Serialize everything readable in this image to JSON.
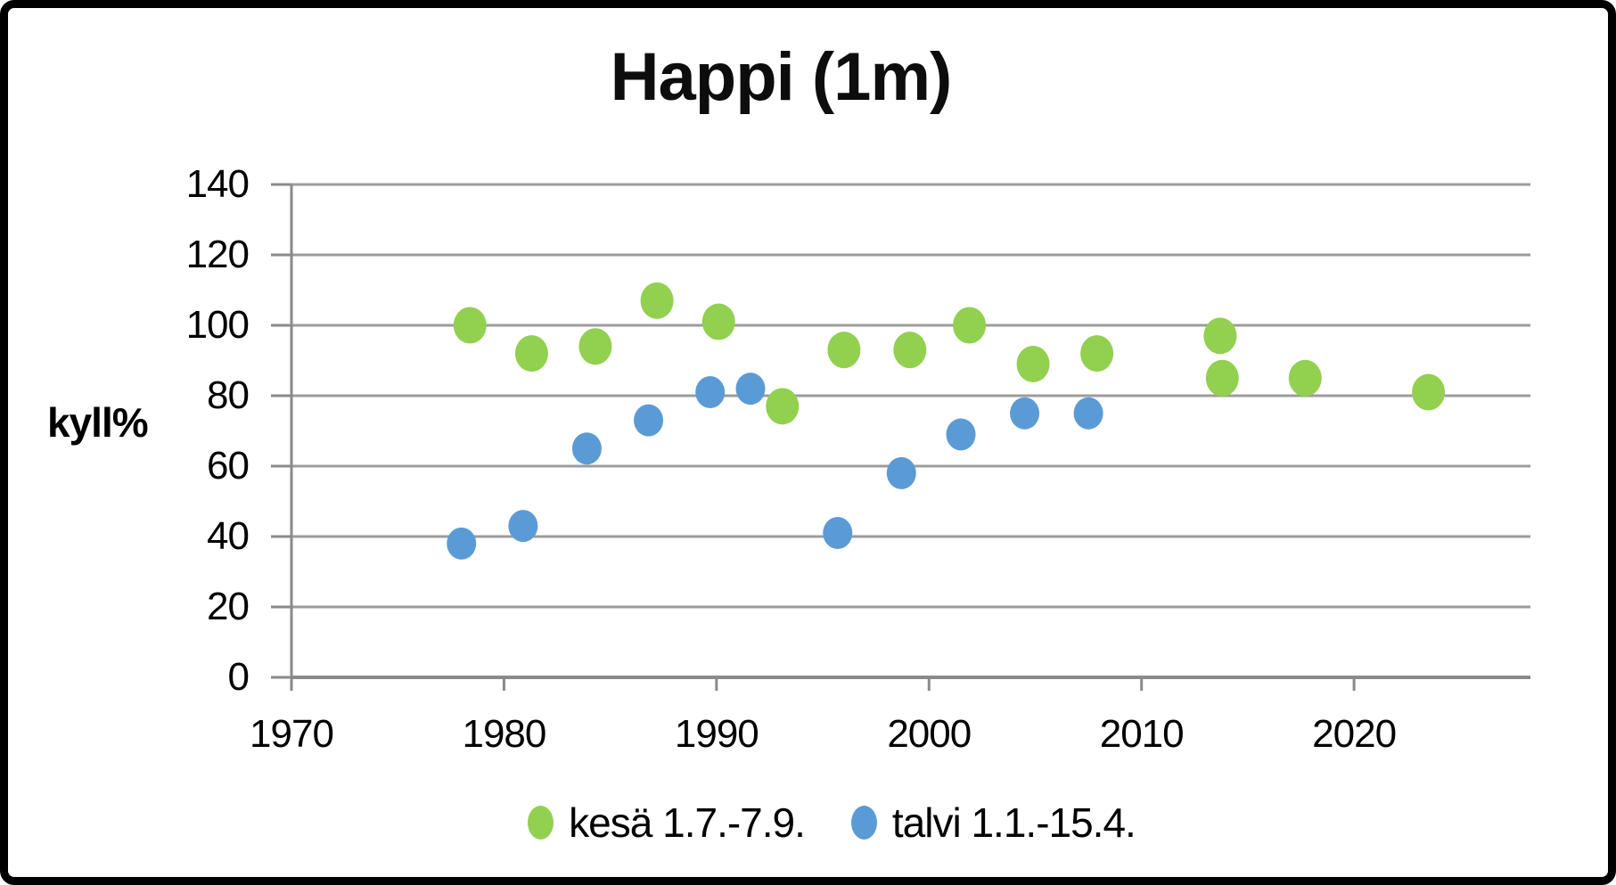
{
  "chart_data": {
    "type": "scatter",
    "title": "Happi (1m)",
    "xlabel": "",
    "ylabel": "kyll%",
    "xlim": [
      1970,
      2028.3
    ],
    "ylim": [
      0,
      140
    ],
    "x_ticks": [
      1970,
      1980,
      1990,
      2000,
      2010,
      2020
    ],
    "y_ticks": [
      0,
      20,
      40,
      60,
      80,
      100,
      120,
      140
    ],
    "grid": "horizontal-only",
    "legend_position": "bottom-center",
    "series": [
      {
        "name": "kesä 1.7.-7.9.",
        "color": "#92D050",
        "points": [
          [
            1978.4,
            100
          ],
          [
            1981.3,
            92
          ],
          [
            1984.3,
            94
          ],
          [
            1987.2,
            107
          ],
          [
            1990.1,
            101
          ],
          [
            1993.1,
            77
          ],
          [
            1996.0,
            93
          ],
          [
            1999.1,
            93
          ],
          [
            2001.9,
            100
          ],
          [
            2004.9,
            89
          ],
          [
            2007.9,
            92
          ],
          [
            2013.7,
            97
          ],
          [
            2013.8,
            85
          ],
          [
            2017.7,
            85
          ],
          [
            2023.5,
            81
          ]
        ]
      },
      {
        "name": "talvi 1.1.-15.4.",
        "color": "#5B9BD5",
        "points": [
          [
            1978.0,
            38
          ],
          [
            1980.9,
            43
          ],
          [
            1983.9,
            65
          ],
          [
            1986.8,
            73
          ],
          [
            1989.7,
            81
          ],
          [
            1991.6,
            82
          ],
          [
            1995.7,
            41
          ],
          [
            1998.7,
            58
          ],
          [
            2001.5,
            69
          ],
          [
            2004.5,
            75
          ],
          [
            2007.5,
            75
          ]
        ]
      }
    ]
  },
  "colors": {
    "background": "#FFFFFF",
    "border": "#000000",
    "gridline": "#9C9C9C",
    "axis": "#8A8A8A",
    "text": "#000000",
    "series_summer": "#92D050",
    "series_winter": "#5B9BD5"
  }
}
